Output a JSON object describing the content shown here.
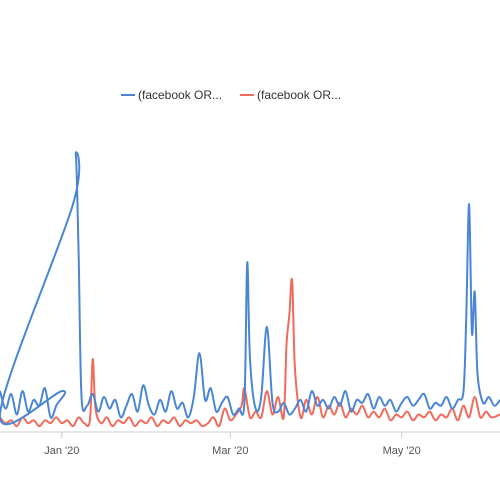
{
  "chart_data": {
    "type": "line",
    "title": "",
    "xlabel": "",
    "ylabel": "",
    "grid": false,
    "legend_position": "top-center",
    "x_start": "2019-12-10",
    "x_end": "2020-06-05",
    "x_ticks": [
      {
        "label": "Jan '20",
        "date": "2020-01-01"
      },
      {
        "label": "Mar '20",
        "date": "2020-03-01"
      },
      {
        "label": "May '20",
        "date": "2020-05-01"
      }
    ],
    "ylim": [
      0,
      100
    ],
    "series": [
      {
        "name": "(facebook OR...",
        "color": "#4a86d4",
        "points": [
          [
            "2019-12-10",
            14
          ],
          [
            "2019-12-12",
            8
          ],
          [
            "2019-12-14",
            13
          ],
          [
            "2019-12-16",
            6
          ],
          [
            "2019-12-18",
            14
          ],
          [
            "2019-12-20",
            7
          ],
          [
            "2019-12-22",
            11
          ],
          [
            "2019-12-24",
            9
          ],
          [
            "2019-12-26",
            15
          ],
          [
            "2019-12-28",
            5
          ],
          [
            "2019-12-30",
            9
          ],
          [
            "2020-01-01",
            14
          ],
          [
            "2020-01_03",
            6
          ],
          [
            "2020-01-05",
            78
          ],
          [
            "2020-01-06",
            95
          ],
          [
            "2020-01-07",
            60
          ],
          [
            "2020-01-08",
            12
          ],
          [
            "2020-01-10",
            9
          ],
          [
            "2020-01-12",
            13
          ],
          [
            "2020-01-14",
            7
          ],
          [
            "2020-01-16",
            12
          ],
          [
            "2020-01-18",
            8
          ],
          [
            "2020-01-20",
            11
          ],
          [
            "2020-01-22",
            5
          ],
          [
            "2020-01-24",
            9
          ],
          [
            "2020-01-26",
            13
          ],
          [
            "2020-01-28",
            7
          ],
          [
            "2020-01-30",
            16
          ],
          [
            "2020-02-01",
            9
          ],
          [
            "2020-02-03",
            6
          ],
          [
            "2020-02-05",
            11
          ],
          [
            "2020-02-07",
            7
          ],
          [
            "2020-02-09",
            14
          ],
          [
            "2020-02-11",
            8
          ],
          [
            "2020-02-13",
            10
          ],
          [
            "2020-02-15",
            5
          ],
          [
            "2020-02-17",
            12
          ],
          [
            "2020-02-19",
            27
          ],
          [
            "2020-02-21",
            11
          ],
          [
            "2020-02-23",
            15
          ],
          [
            "2020-02-25",
            7
          ],
          [
            "2020-02-27",
            10
          ],
          [
            "2020-02-29",
            12
          ],
          [
            "2020-03-02",
            6
          ],
          [
            "2020-03-04",
            8
          ],
          [
            "2020-03-06",
            10
          ],
          [
            "2020-03-07",
            58
          ],
          [
            "2020-03-08",
            25
          ],
          [
            "2020-03-10",
            8
          ],
          [
            "2020-03-12",
            12
          ],
          [
            "2020-03-14",
            36
          ],
          [
            "2020-03-16",
            10
          ],
          [
            "2020-03-18",
            7
          ],
          [
            "2020-03-20",
            10
          ],
          [
            "2020-03-22",
            6
          ],
          [
            "2020-03-24",
            8
          ],
          [
            "2020-03-26",
            11
          ],
          [
            "2020-03-28",
            7
          ],
          [
            "2020-03-30",
            14
          ],
          [
            "2020-04-01",
            9
          ],
          [
            "2020-04-03",
            11
          ],
          [
            "2020-04-05",
            8
          ],
          [
            "2020-04-07",
            12
          ],
          [
            "2020-04-09",
            9
          ],
          [
            "2020-04-11",
            14
          ],
          [
            "2020-04-13",
            7
          ],
          [
            "2020-04-15",
            11
          ],
          [
            "2020-04-17",
            10
          ],
          [
            "2020-04-19",
            13
          ],
          [
            "2020-04-21",
            8
          ],
          [
            "2020-04-23",
            12
          ],
          [
            "2020-04-25",
            9
          ],
          [
            "2020-04-27",
            11
          ],
          [
            "2020-04-29",
            7
          ],
          [
            "2020-05-01",
            10
          ],
          [
            "2020-05-03",
            12
          ],
          [
            "2020-05-05",
            9
          ],
          [
            "2020-05-07",
            11
          ],
          [
            "2020-05-09",
            13
          ],
          [
            "2020-05-11",
            8
          ],
          [
            "2020-05-13",
            10
          ],
          [
            "2020-05-15",
            9
          ],
          [
            "2020-05-17",
            12
          ],
          [
            "2020-05-19",
            8
          ],
          [
            "2020-05-21",
            11
          ],
          [
            "2020-05-23",
            14
          ],
          [
            "2020-05-24",
            40
          ],
          [
            "2020-05-25",
            78
          ],
          [
            "2020-05-26",
            34
          ],
          [
            "2020-05-27",
            48
          ],
          [
            "2020-05-28",
            20
          ],
          [
            "2020-05-30",
            10
          ],
          [
            "2020-06-01",
            12
          ],
          [
            "2020-06-03",
            9
          ],
          [
            "2020-06-05",
            11
          ]
        ]
      },
      {
        "name": "(facebook OR...",
        "color": "#f06b5b",
        "points": [
          [
            "2019-12-10",
            5
          ],
          [
            "2019-12-12",
            3
          ],
          [
            "2019-12-14",
            4
          ],
          [
            "2019-12-16",
            2
          ],
          [
            "2019-12-18",
            5
          ],
          [
            "2019-12-20",
            3
          ],
          [
            "2019-12-22",
            4
          ],
          [
            "2019-12-24",
            2
          ],
          [
            "2019-12-26",
            4
          ],
          [
            "2019-12-28",
            3
          ],
          [
            "2019-12-30",
            5
          ],
          [
            "2020-01-01",
            3
          ],
          [
            "2020-01-03",
            4
          ],
          [
            "2020-01-05",
            2
          ],
          [
            "2020-01-07",
            5
          ],
          [
            "2020-01-09",
            3
          ],
          [
            "2020-01-11",
            4
          ],
          [
            "2020-01-12",
            25
          ],
          [
            "2020-01-13",
            8
          ],
          [
            "2020-01-15",
            3
          ],
          [
            "2020-01-17",
            5
          ],
          [
            "2020-01-19",
            2
          ],
          [
            "2020-01-21",
            4
          ],
          [
            "2020-01-23",
            3
          ],
          [
            "2020-01-25",
            5
          ],
          [
            "2020-01-27",
            2
          ],
          [
            "2020-01-29",
            4
          ],
          [
            "2020-01-31",
            3
          ],
          [
            "2020-02-02",
            5
          ],
          [
            "2020-02-04",
            2
          ],
          [
            "2020-02-06",
            4
          ],
          [
            "2020-02-08",
            3
          ],
          [
            "2020-02-10",
            5
          ],
          [
            "2020-02-12",
            2
          ],
          [
            "2020-02-14",
            4
          ],
          [
            "2020-02-16",
            3
          ],
          [
            "2020-02-18",
            4
          ],
          [
            "2020-02-20",
            2
          ],
          [
            "2020-02-22",
            3
          ],
          [
            "2020-02-24",
            5
          ],
          [
            "2020-02-26",
            2
          ],
          [
            "2020-02-28",
            8
          ],
          [
            "2020-03-01",
            4
          ],
          [
            "2020-03-03",
            6
          ],
          [
            "2020-03-05",
            9
          ],
          [
            "2020-03-06",
            15
          ],
          [
            "2020-03-08",
            5
          ],
          [
            "2020-03-10",
            7
          ],
          [
            "2020-03-12",
            5
          ],
          [
            "2020-03-14",
            14
          ],
          [
            "2020-03-16",
            6
          ],
          [
            "2020-03-18",
            12
          ],
          [
            "2020-03-20",
            5
          ],
          [
            "2020-03-21",
            30
          ],
          [
            "2020-03-22",
            40
          ],
          [
            "2020-03-23",
            52
          ],
          [
            "2020-03-24",
            22
          ],
          [
            "2020-03-26",
            5
          ],
          [
            "2020-03-28",
            11
          ],
          [
            "2020-03-30",
            6
          ],
          [
            "2020-04-01",
            12
          ],
          [
            "2020-04-03",
            5
          ],
          [
            "2020-04-05",
            9
          ],
          [
            "2020-04-07",
            6
          ],
          [
            "2020-04-09",
            10
          ],
          [
            "2020-04-11",
            5
          ],
          [
            "2020-04-13",
            8
          ],
          [
            "2020-04-15",
            6
          ],
          [
            "2020-04-17",
            9
          ],
          [
            "2020-04-19",
            5
          ],
          [
            "2020-04-21",
            7
          ],
          [
            "2020-04-23",
            5
          ],
          [
            "2020-04-25",
            8
          ],
          [
            "2020-04-27",
            4
          ],
          [
            "2020-04-29",
            6
          ],
          [
            "2020-05-01",
            5
          ],
          [
            "2020-05-03",
            7
          ],
          [
            "2020-05-05",
            4
          ],
          [
            "2020-05-07",
            6
          ],
          [
            "2020-05-09",
            5
          ],
          [
            "2020-05-11",
            7
          ],
          [
            "2020-05-13",
            4
          ],
          [
            "2020-05-15",
            6
          ],
          [
            "2020-05-17",
            5
          ],
          [
            "2020-05-19",
            8
          ],
          [
            "2020-05-21",
            4
          ],
          [
            "2020-05-23",
            9
          ],
          [
            "2020-05-25",
            5
          ],
          [
            "2020-05-27",
            12
          ],
          [
            "2020-05-29",
            5
          ],
          [
            "2020-05-31",
            7
          ],
          [
            "2020-06-02",
            5
          ],
          [
            "2020-06-05",
            6
          ]
        ]
      }
    ]
  }
}
